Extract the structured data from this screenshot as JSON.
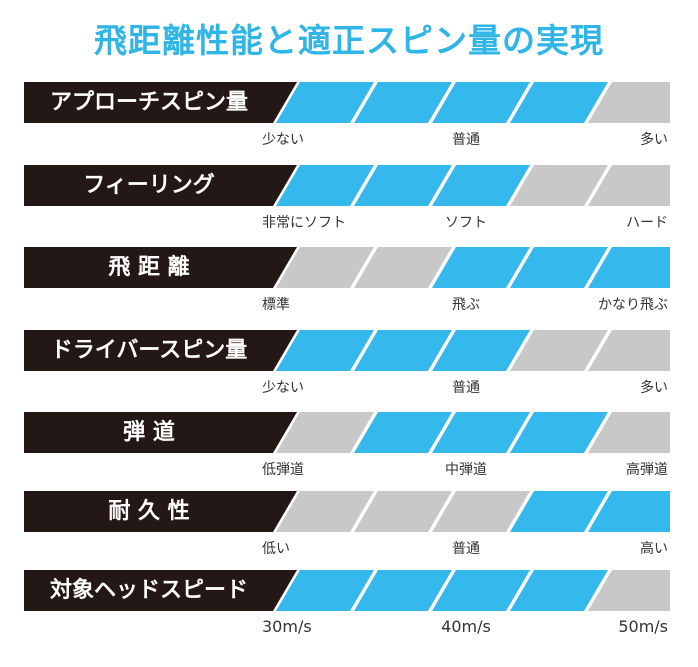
{
  "title": "飛距離性能と適正スピン量の実現",
  "colors": {
    "filled": "#35b8ec",
    "empty": "#c8c8c8",
    "label_bg": "#231815",
    "title": "#2fb5e6"
  },
  "rows": [
    {
      "label": "アプローチスピン量",
      "segments": [
        1,
        1,
        1,
        1,
        0
      ],
      "scale": [
        "少ない",
        "普通",
        "多い"
      ]
    },
    {
      "label": "フィーリング",
      "segments": [
        1,
        1,
        1,
        0,
        0
      ],
      "scale": [
        "非常にソフト",
        "ソフト",
        "ハード"
      ]
    },
    {
      "label": "飛 距 離",
      "segments": [
        0,
        0,
        1,
        1,
        1
      ],
      "scale": [
        "標準",
        "飛ぶ",
        "かなり飛ぶ"
      ]
    },
    {
      "label": "ドライバースピン量",
      "segments": [
        1,
        1,
        1,
        0,
        0
      ],
      "scale": [
        "少ない",
        "普通",
        "多い"
      ]
    },
    {
      "label": "弾 道",
      "segments": [
        0,
        1,
        1,
        1,
        0
      ],
      "scale": [
        "低弾道",
        "中弾道",
        "高弾道"
      ]
    },
    {
      "label": "耐 久 性",
      "segments": [
        0,
        0,
        0,
        1,
        1
      ],
      "scale": [
        "低い",
        "普通",
        "高い"
      ]
    },
    {
      "label": "対象ヘッドスピード",
      "segments": [
        1,
        1,
        1,
        1,
        0
      ],
      "scale": [
        "30m/s",
        "40m/s",
        "50m/s"
      ]
    }
  ]
}
